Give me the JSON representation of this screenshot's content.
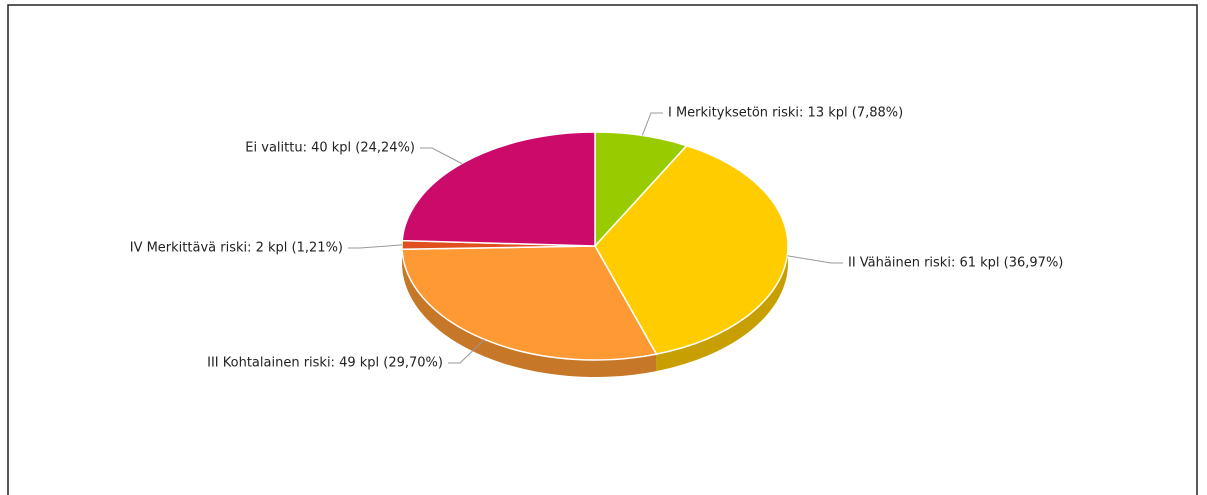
{
  "chart_data": {
    "type": "pie",
    "values": [
      13,
      61,
      49,
      2,
      40
    ],
    "value_labels": [
      "I Merkityksetön riski: 13 kpl (7,88%)",
      "II Vähäinen riski: 61 kpl (36,97%)",
      "III Kohtalainen riski: 49 kpl (29,70%)",
      "IV Merkittävä riski: 2 kpl (1,21%)",
      "Ei valittu: 40 kpl (24,24%)"
    ],
    "colors": [
      "#99cc00",
      "#ffcc00",
      "#ff9933",
      "#e0501e",
      "#cc0a6a"
    ]
  }
}
